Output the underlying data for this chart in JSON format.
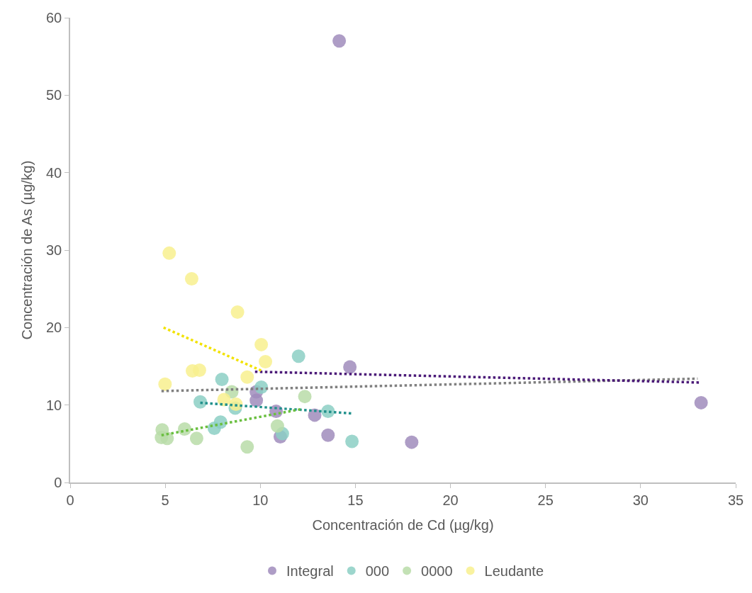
{
  "chart_data": {
    "type": "scatter",
    "xlabel": "Concentración de Cd (µg/kg)",
    "ylabel": "Concentración de As (µg/kg)",
    "xlim": [
      0,
      35
    ],
    "xticks": [
      0,
      5,
      10,
      15,
      20,
      25,
      30,
      35
    ],
    "ylim": [
      0,
      60
    ],
    "yticks": [
      0,
      10,
      20,
      30,
      40,
      50,
      60
    ],
    "grid": false,
    "legend": "bottom",
    "marker": "circle",
    "series": [
      {
        "name": "Integral",
        "color": "#a08cbc",
        "x": [
          14.15,
          14.71,
          33.18,
          9.79,
          9.79,
          10.83,
          12.86,
          13.56,
          11.05,
          17.96
        ],
        "values": [
          57.0,
          14.9,
          10.3,
          11.7,
          10.6,
          9.2,
          8.7,
          6.1,
          5.9,
          5.2
        ]
      },
      {
        "name": "000",
        "color": "#8ccfc4",
        "x": [
          12.01,
          7.98,
          10.05,
          6.84,
          8.68,
          13.56,
          7.91,
          7.58,
          11.16,
          14.82
        ],
        "values": [
          16.3,
          13.3,
          12.3,
          10.4,
          9.6,
          9.2,
          7.8,
          7.0,
          6.3,
          5.3
        ]
      },
      {
        "name": "0000",
        "color": "#b9dca8",
        "x": [
          4.84,
          4.8,
          5.1,
          6.02,
          6.65,
          8.5,
          9.31,
          10.9,
          12.34
        ],
        "values": [
          6.8,
          5.8,
          5.7,
          6.9,
          5.7,
          11.7,
          4.6,
          7.3,
          11.1
        ]
      },
      {
        "name": "Leudante",
        "color": "#f8f08e",
        "x": [
          5.21,
          6.39,
          8.8,
          10.05,
          10.27,
          9.31,
          6.43,
          6.8,
          4.99,
          8.09,
          8.72
        ],
        "values": [
          29.6,
          26.3,
          22.0,
          17.8,
          15.6,
          13.6,
          14.4,
          14.5,
          12.7,
          10.7,
          10.1
        ]
      },
      {
        "type": "line",
        "marker": "none",
        "line_style": "dotted",
        "color": "#808080",
        "x": [
          4.8,
          33.0
        ],
        "values": [
          11.8,
          13.4
        ]
      },
      {
        "type": "line",
        "marker": "none",
        "line_style": "dotted",
        "color": "#4b1a78",
        "x": [
          9.72,
          33.18
        ],
        "values": [
          14.3,
          12.9
        ]
      },
      {
        "type": "line",
        "marker": "none",
        "line_style": "dotted",
        "color": "#f2e200",
        "x": [
          4.91,
          10.09
        ],
        "values": [
          20.0,
          14.4
        ]
      },
      {
        "type": "line",
        "marker": "none",
        "line_style": "dotted",
        "color": "#21918c",
        "x": [
          6.84,
          14.82
        ],
        "values": [
          10.3,
          8.9
        ]
      },
      {
        "type": "line",
        "marker": "none",
        "line_style": "dotted",
        "color": "#6abf40",
        "x": [
          4.8,
          12.23
        ],
        "values": [
          6.1,
          9.5
        ]
      }
    ]
  }
}
